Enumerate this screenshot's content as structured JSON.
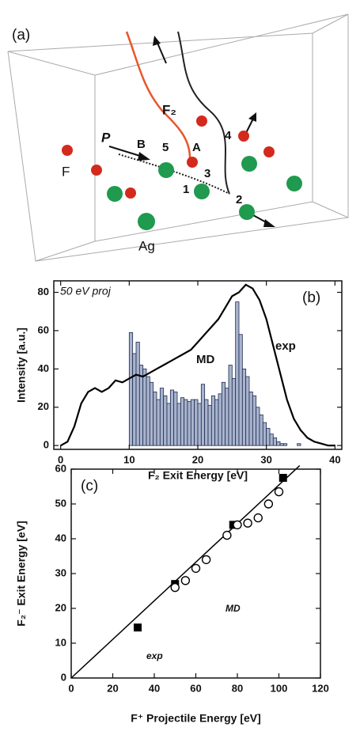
{
  "panel_a": {
    "label": "(a)",
    "texts": [
      "F",
      "Ag",
      "P",
      "B",
      "5",
      "A",
      "4",
      "3",
      "1",
      "2",
      "F₂"
    ]
  },
  "chart_data": [
    {
      "type": "histogram",
      "panel_label": "(b)",
      "annotation": "50 eV proj",
      "x_label": "F₂ Exit Energy [eV]",
      "y_label": "Intensity [a.u.]",
      "xlim": [
        -1,
        41
      ],
      "ylim": [
        -2,
        86
      ],
      "xticks": [
        0,
        10,
        20,
        30,
        40
      ],
      "yticks": [
        0,
        20,
        40,
        60,
        80
      ],
      "bins": [
        10,
        10.5,
        11,
        11.5,
        12,
        12.5,
        13,
        13.5,
        14,
        14.5,
        15,
        15.5,
        16,
        16.5,
        17,
        17.5,
        18,
        18.5,
        19,
        19.5,
        20,
        20.5,
        21,
        21.5,
        22,
        22.5,
        23,
        23.5,
        24,
        24.5,
        25,
        25.5,
        26,
        26.5,
        27,
        27.5,
        28,
        28.5,
        29,
        29.5,
        30,
        30.5,
        31,
        31.5,
        32,
        32.5,
        33,
        33.5,
        34,
        34.5,
        35
      ],
      "series": [
        {
          "name": "MD",
          "type": "histogram",
          "color": "#a9b4cc",
          "values": [
            59,
            48,
            54,
            42,
            40,
            36,
            33,
            28,
            24,
            30,
            26,
            22,
            29,
            28,
            22,
            25,
            24,
            23,
            24,
            24,
            22,
            32,
            24,
            21,
            26,
            24,
            27,
            33,
            30,
            42,
            35,
            75,
            58,
            40,
            36,
            28,
            26,
            20,
            16,
            12,
            9,
            6,
            4,
            2,
            1,
            1,
            0,
            0,
            0,
            1
          ]
        },
        {
          "name": "exp",
          "type": "line",
          "color": "#000000",
          "x": [
            0,
            1,
            2,
            3,
            4,
            5,
            6,
            7,
            8,
            9,
            10,
            11,
            12,
            13,
            14,
            15,
            16,
            17,
            18,
            19,
            20,
            21,
            22,
            23,
            24,
            25,
            26,
            27,
            28,
            29,
            30,
            31,
            32,
            33,
            34,
            35,
            36,
            37,
            38,
            39,
            40
          ],
          "values": [
            0,
            2,
            10,
            22,
            28,
            30,
            28,
            30,
            34,
            33,
            35,
            37,
            36,
            38,
            40,
            42,
            44,
            46,
            48,
            50,
            54,
            58,
            62,
            66,
            72,
            78,
            80,
            84,
            82,
            76,
            66,
            52,
            38,
            24,
            14,
            8,
            4,
            2,
            1,
            0,
            0
          ]
        }
      ]
    },
    {
      "type": "scatter",
      "panel_label": "(c)",
      "x_label": "F⁺ Projectile Energy [eV]",
      "y_label": "F₂⁻ Exit Energy [eV]",
      "xlim": [
        0,
        120
      ],
      "ylim": [
        0,
        60
      ],
      "xticks": [
        0,
        20,
        40,
        60,
        80,
        100,
        120
      ],
      "yticks": [
        0,
        10,
        20,
        30,
        40,
        50,
        60
      ],
      "series": [
        {
          "type": "line",
          "color": "#000000",
          "x": [
            0,
            110
          ],
          "values": [
            0,
            61
          ]
        },
        {
          "name": "exp",
          "type": "square",
          "color": "#000000",
          "x": [
            32,
            50,
            78,
            102
          ],
          "values": [
            14.5,
            27,
            44,
            57.5
          ]
        },
        {
          "name": "MD",
          "type": "circle",
          "color": "#000000",
          "x": [
            50,
            55,
            60,
            65,
            75,
            80,
            85,
            90,
            95,
            100
          ],
          "values": [
            26,
            28,
            31.5,
            34,
            41,
            44,
            44.5,
            46,
            50,
            53.5
          ]
        }
      ]
    }
  ]
}
